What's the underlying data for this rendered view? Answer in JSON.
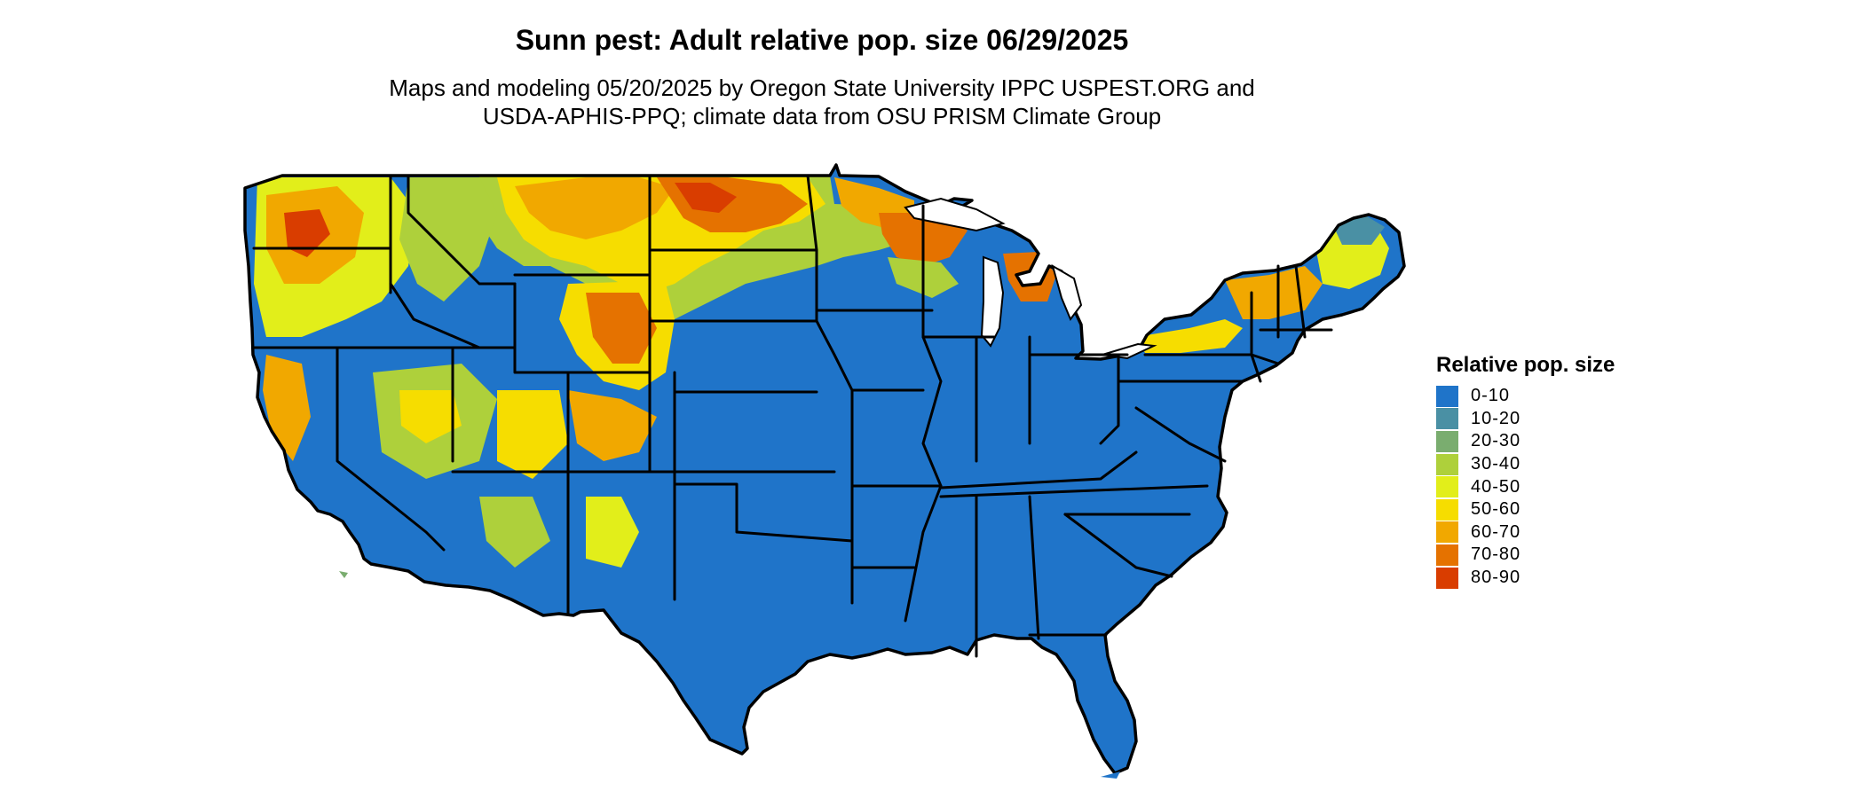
{
  "title": "Sunn pest: Adult relative pop. size 06/29/2025",
  "subtitle_line1": "Maps and modeling 05/20/2025 by Oregon State University IPPC USPEST.ORG and",
  "subtitle_line2": "USDA-APHIS-PPQ; climate data from OSU PRISM Climate Group",
  "legend": {
    "title": "Relative pop. size",
    "items": [
      {
        "label": "0-10",
        "color": "#1f74c9"
      },
      {
        "label": "10-20",
        "color": "#4a90a4"
      },
      {
        "label": "20-30",
        "color": "#7aad6f"
      },
      {
        "label": "30-40",
        "color": "#aed03b"
      },
      {
        "label": "40-50",
        "color": "#e2ee1a"
      },
      {
        "label": "50-60",
        "color": "#f6dd00"
      },
      {
        "label": "60-70",
        "color": "#f1a800"
      },
      {
        "label": "70-80",
        "color": "#e57200"
      },
      {
        "label": "80-90",
        "color": "#d93d00"
      }
    ]
  },
  "map": {
    "base_color": "#1f74c9",
    "outline_color": "#000000"
  }
}
